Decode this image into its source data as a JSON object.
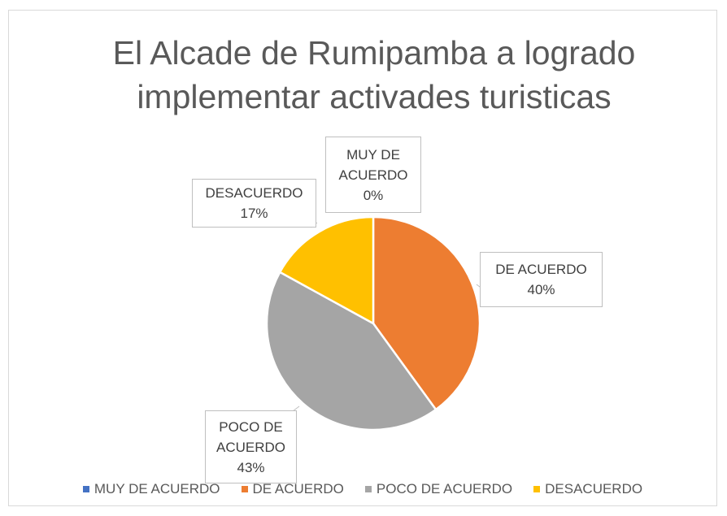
{
  "chart_data": {
    "type": "pie",
    "title": "El Alcade de Rumipamba a logrado implementar activades turisticas",
    "categories": [
      "MUY DE ACUERDO",
      "DE ACUERDO",
      "POCO DE ACUERDO",
      "DESACUERDO"
    ],
    "values": [
      0,
      40,
      43,
      17
    ],
    "value_labels": [
      "0%",
      "40%",
      "43%",
      "17%"
    ],
    "colors": [
      "#4472c4",
      "#ed7d31",
      "#a5a5a5",
      "#ffc000"
    ],
    "legend": "bottom"
  }
}
